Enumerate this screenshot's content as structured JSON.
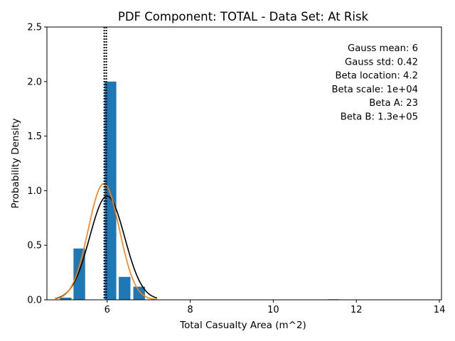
{
  "chart_data": {
    "type": "bar",
    "title": "PDF Component: TOTAL - Data Set: At Risk",
    "xlabel": "Total Casualty Area (m^2)",
    "ylabel": "Probability Density",
    "xlim": [
      4.55,
      14.05
    ],
    "ylim": [
      0,
      2.5
    ],
    "xticks": [
      6,
      8,
      10,
      12,
      14
    ],
    "xtick_labels": [
      "6",
      "8",
      "10",
      "12",
      "14"
    ],
    "yticks": [
      0,
      0.5,
      1.0,
      1.5,
      2.0,
      2.5
    ],
    "ytick_labels": [
      "0.0",
      "0.5",
      "1.0",
      "1.5",
      "2.0",
      "2.5"
    ],
    "grid": false,
    "histogram": {
      "color": "#1f77b4",
      "bar_width": 0.28,
      "bars": [
        {
          "x": 5.0,
          "value": 0.02
        },
        {
          "x": 5.33,
          "value": 0.47
        },
        {
          "x": 6.08,
          "value": 2.0
        },
        {
          "x": 6.42,
          "value": 0.21
        },
        {
          "x": 6.77,
          "value": 0.12
        },
        {
          "x": 11.45,
          "value": 0.005
        }
      ]
    },
    "series": [
      {
        "type": "line",
        "color": "#000000",
        "distribution": "gauss",
        "mean": 6.0,
        "std": 0.42,
        "x_range": [
          4.75,
          7.2
        ]
      },
      {
        "type": "line",
        "color": "#ff7f0e",
        "distribution": "beta",
        "mean": 5.92,
        "std": 0.375,
        "x_range": [
          4.75,
          7.2
        ]
      }
    ],
    "vlines": [
      {
        "x": 5.93,
        "style": "dotted",
        "color": "#000000"
      },
      {
        "x": 5.98,
        "style": "dotted",
        "color": "#000000"
      }
    ],
    "annotations": [
      "Gauss mean: 6",
      "Gauss std: 0.42",
      "Beta location: 4.2",
      "Beta scale: 1e+04",
      "Beta A: 23",
      "Beta B: 1.3e+05"
    ]
  }
}
